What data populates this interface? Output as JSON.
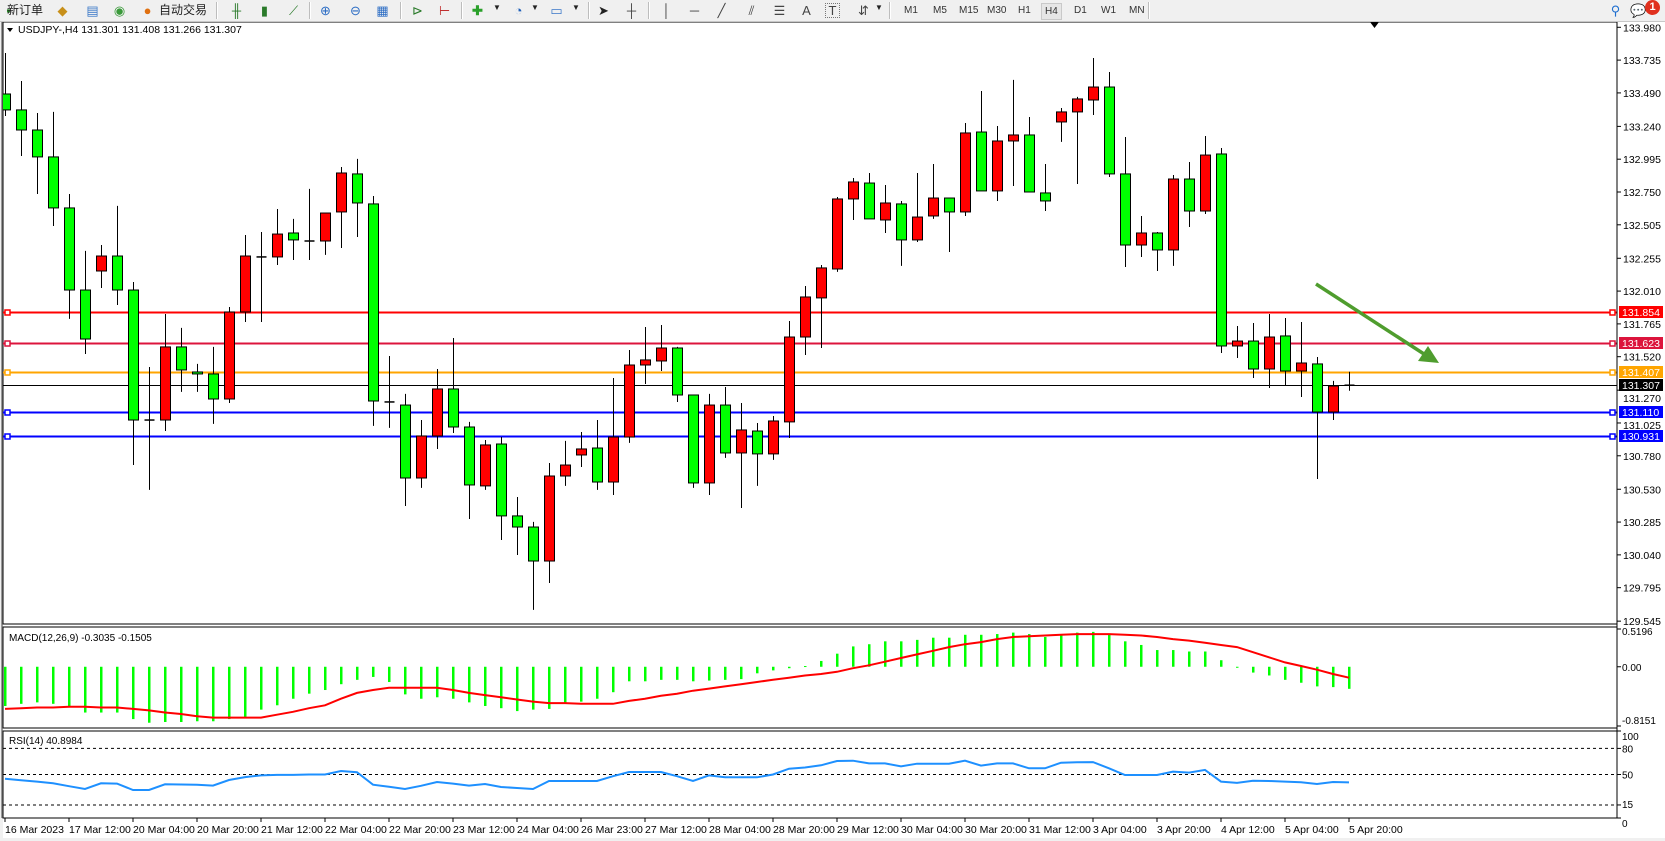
{
  "toolbar": {
    "new_order_label": "新订单",
    "autotrade_label": "自动交易",
    "timeframes": [
      "M1",
      "M5",
      "M15",
      "M30",
      "H1",
      "H4",
      "D1",
      "W1",
      "MN"
    ],
    "active_timeframe": "H4",
    "notification_count": "1",
    "text_tool_label": "A",
    "label_tool_label": "T"
  },
  "chart_header": {
    "symbol_info": "USDJPY-,H4  131.301 131.408 131.266 131.307"
  },
  "chart_data": {
    "type": "candlestick",
    "symbol": "USDJPY-",
    "timeframe": "H4",
    "bull_color": "#ff0000",
    "bear_color": "#00ff00",
    "ylim": [
      129.545,
      133.98
    ],
    "price_ticks": [
      "133.980",
      "133.735",
      "133.490",
      "133.240",
      "132.995",
      "132.750",
      "132.505",
      "132.255",
      "132.010",
      "131.765",
      "131.520",
      "131.270",
      "131.025",
      "130.780",
      "130.530",
      "130.285",
      "130.040",
      "129.795",
      "129.545"
    ],
    "time_labels": [
      "16 Mar 2023",
      "17 Mar 12:00",
      "20 Mar 04:00",
      "20 Mar 20:00",
      "21 Mar 12:00",
      "22 Mar 04:00",
      "22 Mar 20:00",
      "23 Mar 12:00",
      "24 Mar 04:00",
      "26 Mar 23:00",
      "27 Mar 12:00",
      "28 Mar 04:00",
      "28 Mar 20:00",
      "29 Mar 12:00",
      "30 Mar 04:00",
      "30 Mar 20:00",
      "31 Mar 12:00",
      "3 Apr 04:00",
      "3 Apr 20:00",
      "4 Apr 12:00",
      "5 Apr 04:00",
      "5 Apr 20:00"
    ],
    "ohlc": [
      [
        133.482,
        133.788,
        133.318,
        133.363
      ],
      [
        133.363,
        133.579,
        133.019,
        133.213
      ],
      [
        133.213,
        133.34,
        132.735,
        133.012
      ],
      [
        133.012,
        133.348,
        132.496,
        132.631
      ],
      [
        132.631,
        132.735,
        131.802,
        132.018
      ],
      [
        132.018,
        132.31,
        131.54,
        131.652
      ],
      [
        132.16,
        132.354,
        132.033,
        132.272
      ],
      [
        132.272,
        132.646,
        131.906,
        132.018
      ],
      [
        132.018,
        132.078,
        130.711,
        131.047
      ],
      [
        131.047,
        131.443,
        130.525,
        131.047
      ],
      [
        131.047,
        131.839,
        130.965,
        131.593
      ],
      [
        131.593,
        131.735,
        131.257,
        131.421
      ],
      [
        131.406,
        131.466,
        131.257,
        131.391
      ],
      [
        131.391,
        131.593,
        131.018,
        131.204
      ],
      [
        131.204,
        131.891,
        131.174,
        131.854
      ],
      [
        131.854,
        132.429,
        131.779,
        132.272
      ],
      [
        132.265,
        132.451,
        131.779,
        132.265
      ],
      [
        132.265,
        132.623,
        132.205,
        132.436
      ],
      [
        132.444,
        132.549,
        132.242,
        132.392
      ],
      [
        132.384,
        132.773,
        132.242,
        132.384
      ],
      [
        132.384,
        132.593,
        132.28,
        132.593
      ],
      [
        132.601,
        132.937,
        132.332,
        132.892
      ],
      [
        132.885,
        132.997,
        132.414,
        132.668
      ],
      [
        132.661,
        132.72,
        131.003,
        131.189
      ],
      [
        131.182,
        131.525,
        130.988,
        131.182
      ],
      [
        131.159,
        131.242,
        130.405,
        130.614
      ],
      [
        130.614,
        131.047,
        130.54,
        130.928
      ],
      [
        130.928,
        131.428,
        130.831,
        131.279
      ],
      [
        131.279,
        131.66,
        130.95,
        130.995
      ],
      [
        130.995,
        131.033,
        130.308,
        130.562
      ],
      [
        130.555,
        130.898,
        130.525,
        130.861
      ],
      [
        130.868,
        130.92,
        130.151,
        130.331
      ],
      [
        130.331,
        130.472,
        130.039,
        130.248
      ],
      [
        130.248,
        130.286,
        129.629,
        129.994
      ],
      [
        129.994,
        130.726,
        129.83,
        130.629
      ],
      [
        130.629,
        130.891,
        130.555,
        130.711
      ],
      [
        130.786,
        130.958,
        130.696,
        130.831
      ],
      [
        130.838,
        131.047,
        130.525,
        130.584
      ],
      [
        130.584,
        131.361,
        130.487,
        130.92
      ],
      [
        130.92,
        131.57,
        130.876,
        131.458
      ],
      [
        131.458,
        131.742,
        131.316,
        131.496
      ],
      [
        131.488,
        131.757,
        131.413,
        131.585
      ],
      [
        131.585,
        131.593,
        131.182,
        131.234
      ],
      [
        131.234,
        131.234,
        130.54,
        130.577
      ],
      [
        130.577,
        131.242,
        130.487,
        131.159
      ],
      [
        131.159,
        131.294,
        130.764,
        130.801
      ],
      [
        130.801,
        131.174,
        130.39,
        130.973
      ],
      [
        130.965,
        131.025,
        130.555,
        130.794
      ],
      [
        130.794,
        131.077,
        130.749,
        131.04
      ],
      [
        131.033,
        131.787,
        130.913,
        131.667
      ],
      [
        131.667,
        132.048,
        131.533,
        131.966
      ],
      [
        131.959,
        132.205,
        131.585,
        132.183
      ],
      [
        132.175,
        132.713,
        132.153,
        132.698
      ],
      [
        132.698,
        132.855,
        132.541,
        132.825
      ],
      [
        132.817,
        132.892,
        132.549,
        132.549
      ],
      [
        132.541,
        132.802,
        132.444,
        132.668
      ],
      [
        132.661,
        132.683,
        132.198,
        132.392
      ],
      [
        132.392,
        132.892,
        132.377,
        132.563
      ],
      [
        132.571,
        132.959,
        132.549,
        132.705
      ],
      [
        132.705,
        132.705,
        132.302,
        132.601
      ],
      [
        132.601,
        133.265,
        132.571,
        133.191
      ],
      [
        133.198,
        133.504,
        132.758,
        132.758
      ],
      [
        132.758,
        133.243,
        132.683,
        133.131
      ],
      [
        133.131,
        133.587,
        132.795,
        133.176
      ],
      [
        133.176,
        133.31,
        132.75,
        132.75
      ],
      [
        132.743,
        132.959,
        132.608,
        132.683
      ],
      [
        133.273,
        133.377,
        133.124,
        133.348
      ],
      [
        133.348,
        133.46,
        132.81,
        133.445
      ],
      [
        133.437,
        133.751,
        133.325,
        133.534
      ],
      [
        133.534,
        133.646,
        132.862,
        132.885
      ],
      [
        132.885,
        133.161,
        132.19,
        132.354
      ],
      [
        132.354,
        132.571,
        132.265,
        132.444
      ],
      [
        132.444,
        132.451,
        132.16,
        132.317
      ],
      [
        132.317,
        132.877,
        132.198,
        132.847
      ],
      [
        132.847,
        132.974,
        132.489,
        132.608
      ],
      [
        132.608,
        133.168,
        132.586,
        133.026
      ],
      [
        133.034,
        133.079,
        131.548,
        131.6
      ],
      [
        131.6,
        131.749,
        131.51,
        131.637
      ],
      [
        131.637,
        131.772,
        131.361,
        131.428
      ],
      [
        131.428,
        131.839,
        131.286,
        131.667
      ],
      [
        131.675,
        131.809,
        131.309,
        131.413
      ],
      [
        131.413,
        131.779,
        131.219,
        131.473
      ],
      [
        131.466,
        131.518,
        130.607,
        131.107
      ],
      [
        131.107,
        131.339,
        131.047,
        131.301
      ],
      [
        131.301,
        131.408,
        131.266,
        131.307
      ]
    ],
    "levels": [
      {
        "value": "131.854",
        "color": "#ff0000"
      },
      {
        "value": "131.623",
        "color": "#dc143c"
      },
      {
        "value": "131.407",
        "color": "#ffa500"
      },
      {
        "value": "131.307",
        "color": "#000000",
        "current_price": true
      },
      {
        "value": "131.110",
        "color": "#0000ff"
      },
      {
        "value": "130.931",
        "color": "#0000ff"
      }
    ],
    "annotation_arrow": {
      "color": "#4f9d2e",
      "direction": "down-right"
    },
    "macd": {
      "label": "MACD(12,26,9) -0.3035 -0.1505",
      "ylim": [
        -0.8151,
        0.5196
      ],
      "ticks": [
        "0.5196",
        "0.00",
        "-0.8151"
      ],
      "histogram_color": "#00ff00",
      "signal_color": "#ff0000",
      "histogram": [
        -0.54,
        -0.51,
        -0.49,
        -0.51,
        -0.56,
        -0.63,
        -0.63,
        -0.63,
        -0.72,
        -0.77,
        -0.76,
        -0.76,
        -0.75,
        -0.75,
        -0.72,
        -0.69,
        -0.59,
        -0.53,
        -0.44,
        -0.37,
        -0.32,
        -0.24,
        -0.18,
        -0.14,
        -0.21,
        -0.38,
        -0.44,
        -0.42,
        -0.44,
        -0.49,
        -0.54,
        -0.57,
        -0.61,
        -0.59,
        -0.58,
        -0.51,
        -0.48,
        -0.44,
        -0.35,
        -0.2,
        -0.2,
        -0.18,
        -0.18,
        -0.2,
        -0.19,
        -0.18,
        -0.17,
        -0.09,
        -0.05,
        -0.02,
        0.01,
        0.08,
        0.18,
        0.28,
        0.31,
        0.35,
        0.35,
        0.37,
        0.4,
        0.4,
        0.44,
        0.44,
        0.45,
        0.47,
        0.45,
        0.41,
        0.45,
        0.47,
        0.48,
        0.44,
        0.35,
        0.3,
        0.23,
        0.23,
        0.21,
        0.21,
        0.09,
        -0.01,
        -0.08,
        -0.12,
        -0.18,
        -0.22,
        -0.27,
        -0.28,
        -0.3035
      ],
      "signal": [
        -0.58,
        -0.57,
        -0.56,
        -0.56,
        -0.55,
        -0.55,
        -0.56,
        -0.56,
        -0.58,
        -0.6,
        -0.63,
        -0.65,
        -0.68,
        -0.7,
        -0.7,
        -0.7,
        -0.7,
        -0.66,
        -0.62,
        -0.57,
        -0.53,
        -0.44,
        -0.36,
        -0.32,
        -0.29,
        -0.29,
        -0.29,
        -0.29,
        -0.32,
        -0.36,
        -0.39,
        -0.42,
        -0.45,
        -0.48,
        -0.5,
        -0.5,
        -0.51,
        -0.51,
        -0.51,
        -0.47,
        -0.44,
        -0.4,
        -0.37,
        -0.33,
        -0.3,
        -0.27,
        -0.24,
        -0.21,
        -0.18,
        -0.15,
        -0.12,
        -0.1,
        -0.07,
        -0.02,
        0.02,
        0.07,
        0.12,
        0.17,
        0.22,
        0.27,
        0.31,
        0.34,
        0.38,
        0.41,
        0.42,
        0.43,
        0.44,
        0.45,
        0.45,
        0.45,
        0.44,
        0.43,
        0.41,
        0.38,
        0.36,
        0.33,
        0.3,
        0.27,
        0.2,
        0.13,
        0.06,
        0.01,
        -0.04,
        -0.1,
        -0.1505
      ]
    },
    "rsi": {
      "label": "RSI(14) 40.8984",
      "ylim": [
        0,
        100
      ],
      "ticks": [
        "100",
        "80",
        "50",
        "15",
        "0"
      ],
      "levels": [
        80,
        50,
        15
      ],
      "color": "#1e90ff",
      "values": [
        45.2,
        43.5,
        41.8,
        39.9,
        36.5,
        33.3,
        39.9,
        39.5,
        32.2,
        32.2,
        38.7,
        38.5,
        38.2,
        37.2,
        43.7,
        47,
        49.0,
        49.5,
        49.5,
        50,
        50,
        54,
        52.6,
        38.3,
        36,
        33.3,
        37,
        41.4,
        39.5,
        37.2,
        39.1,
        35.6,
        34.5,
        33.3,
        42.5,
        42.5,
        42.5,
        42.5,
        48,
        52.9,
        52.9,
        52.9,
        48,
        42.5,
        49.0,
        46.8,
        46.8,
        46.8,
        50,
        56.7,
        58,
        60.6,
        65.5,
        65.9,
        62.8,
        62.8,
        59.4,
        62.4,
        62.4,
        62.4,
        65.9,
        60.2,
        62.8,
        62.8,
        57.1,
        57.1,
        63.6,
        64,
        64.3,
        57.1,
        49.4,
        49.4,
        49.4,
        53.3,
        52.2,
        55.3,
        41.8,
        40.3,
        42.9,
        42.5,
        41.8,
        41.0,
        39.1,
        41.4,
        40.8984
      ]
    }
  }
}
